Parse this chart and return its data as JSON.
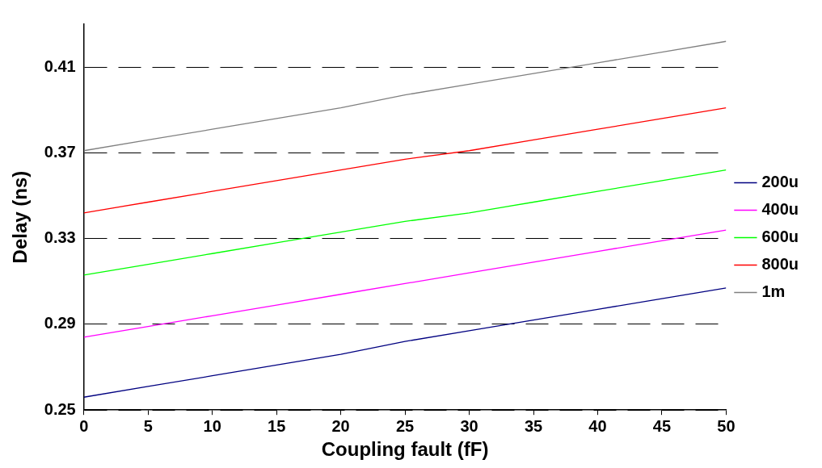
{
  "chart_data": {
    "type": "line",
    "xlabel": "Coupling fault (fF)",
    "ylabel": "Delay (ns)",
    "x": [
      0,
      5,
      10,
      15,
      20,
      25,
      30,
      35,
      40,
      45,
      50
    ],
    "series": [
      {
        "name": "200u",
        "color": "#000080",
        "values": [
          0.256,
          0.261,
          0.266,
          0.271,
          0.276,
          0.282,
          0.287,
          0.292,
          0.297,
          0.302,
          0.307
        ]
      },
      {
        "name": "400u",
        "color": "#ff00ff",
        "values": [
          0.284,
          0.289,
          0.294,
          0.299,
          0.304,
          0.309,
          0.314,
          0.319,
          0.324,
          0.329,
          0.334
        ]
      },
      {
        "name": "600u",
        "color": "#00ff00",
        "values": [
          0.313,
          0.318,
          0.323,
          0.328,
          0.333,
          0.338,
          0.342,
          0.347,
          0.352,
          0.357,
          0.362
        ]
      },
      {
        "name": "800u",
        "color": "#ff0000",
        "values": [
          0.342,
          0.347,
          0.352,
          0.357,
          0.362,
          0.367,
          0.371,
          0.376,
          0.381,
          0.386,
          0.391
        ]
      },
      {
        "name": "1m",
        "color": "#808080",
        "values": [
          0.371,
          0.376,
          0.381,
          0.386,
          0.391,
          0.397,
          0.402,
          0.407,
          0.412,
          0.417,
          0.422
        ]
      }
    ],
    "xlim": [
      0,
      50
    ],
    "xticks": [
      0,
      5,
      10,
      15,
      20,
      25,
      30,
      35,
      40,
      45,
      50
    ],
    "ylim": [
      0.25,
      0.43
    ],
    "yticks": [
      0.25,
      0.29,
      0.33,
      0.37,
      0.41
    ],
    "grid": "y",
    "legend": "right",
    "marker": "none",
    "line_style": "solid"
  }
}
